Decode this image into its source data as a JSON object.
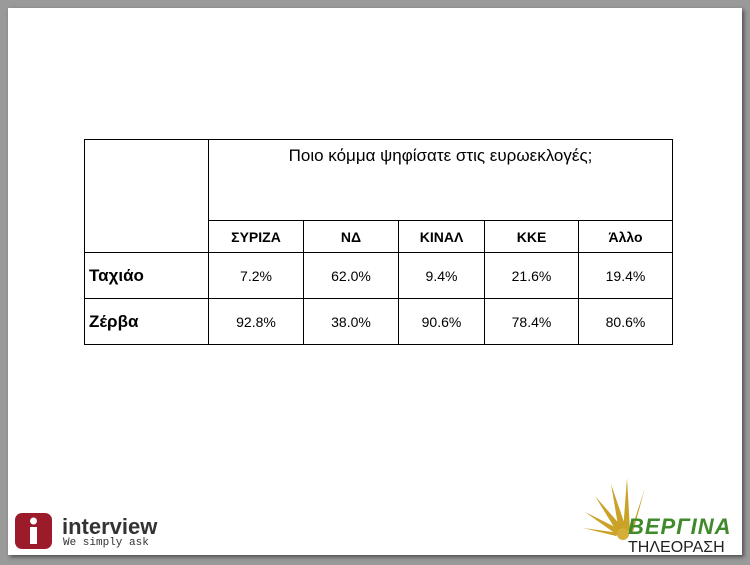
{
  "table": {
    "title": "Ποιο κόμμα ψηφίσατε στις ευρωεκλογές;",
    "columns": [
      "ΣΥΡΙΖΑ",
      "ΝΔ",
      "ΚΙΝΑΛ",
      "ΚΚΕ",
      "Άλλο"
    ],
    "rows": [
      [
        "Ταχιάο",
        "7.2%",
        "62.0%",
        "9.4%",
        "21.6%",
        "19.4%"
      ],
      [
        "Ζέρβα",
        "92.8%",
        "38.0%",
        "90.6%",
        "78.4%",
        "80.6%"
      ]
    ]
  },
  "logos": {
    "interview": {
      "name": "interview",
      "tagline": "We simply ask"
    },
    "vergina": {
      "name": "ΒΕΡΓΙΝΑ",
      "subtitle": "ΤΗΛΕΟΡΑΣΗ"
    }
  }
}
